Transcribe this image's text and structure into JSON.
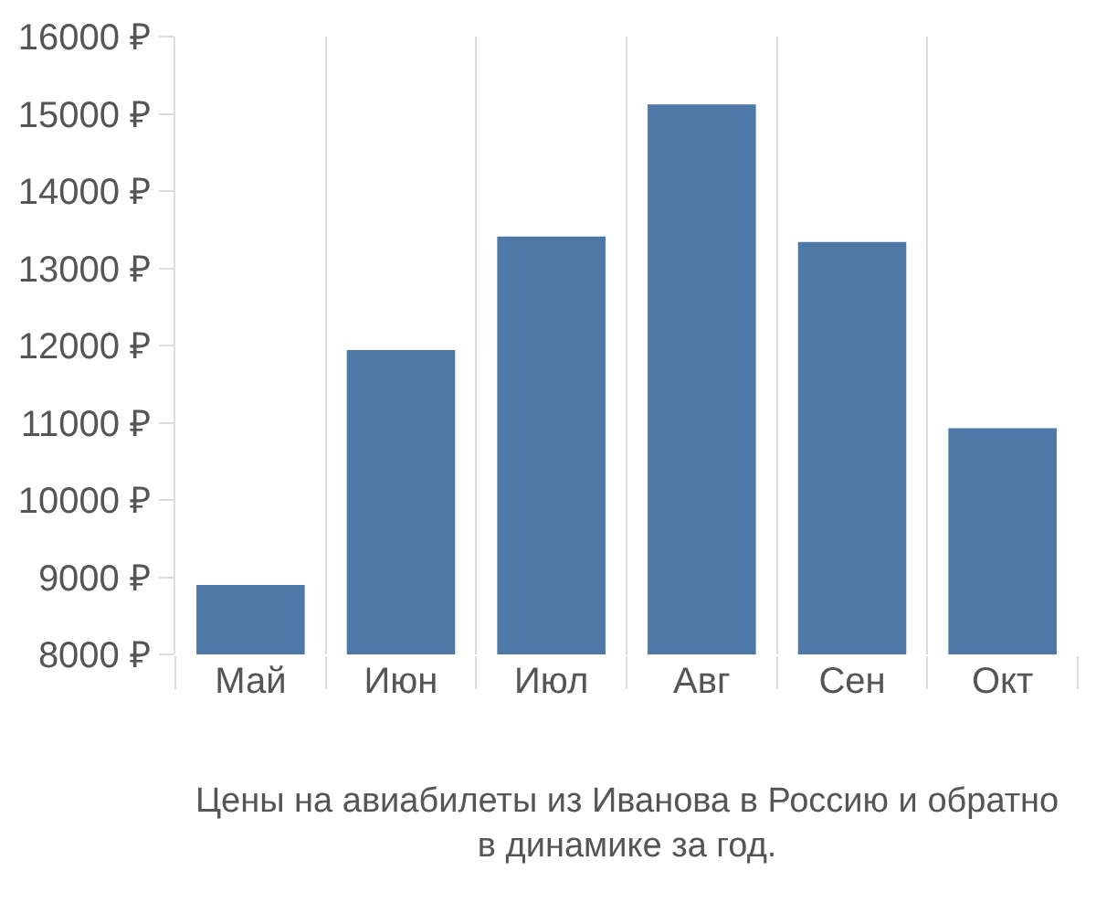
{
  "chart_data": {
    "type": "bar",
    "categories": [
      "Май",
      "Июн",
      "Июл",
      "Авг",
      "Сен",
      "Окт"
    ],
    "values": [
      8900,
      11940,
      13410,
      15120,
      13340,
      10930
    ],
    "color": "#4e79a7",
    "ylim": [
      8000,
      16000
    ],
    "yticks": [
      {
        "value": 8000,
        "label": "8000 ₽"
      },
      {
        "value": 9000,
        "label": "9000 ₽"
      },
      {
        "value": 10000,
        "label": "10000 ₽"
      },
      {
        "value": 11000,
        "label": "11000 ₽"
      },
      {
        "value": 12000,
        "label": "12000 ₽"
      },
      {
        "value": 13000,
        "label": "13000 ₽"
      },
      {
        "value": 14000,
        "label": "14000 ₽"
      },
      {
        "value": 15000,
        "label": "15000 ₽"
      },
      {
        "value": 16000,
        "label": "16000 ₽"
      }
    ],
    "grid": "x",
    "annotations": [
      "Цены на авиабилеты из Иванова в Россию и обратно\nв динамике за год."
    ]
  }
}
